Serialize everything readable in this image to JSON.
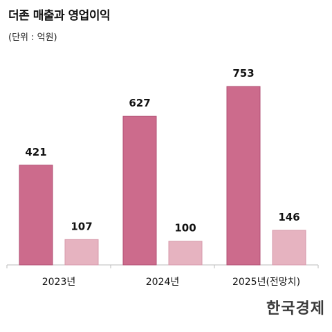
{
  "header": {
    "title": "더존 매출과 영업이익",
    "unit": "(단위 : 억원)"
  },
  "logo_text": "한국경제",
  "colors": {
    "revenue": "#cc6b8c",
    "revenue_stroke": "#b24f73",
    "profit": "#e6b3c0",
    "profit_stroke": "#d79aab",
    "axis": "#bbbbbb",
    "label": "#111111"
  },
  "chart_data": {
    "type": "bar",
    "title": "더존 매출과 영업이익",
    "ylabel": "(단위 : 억원)",
    "categories": [
      "2023년",
      "2024년",
      "2025년(전망치)"
    ],
    "series": [
      {
        "values": [
          421,
          627,
          753
        ]
      },
      {
        "values": [
          107,
          100,
          146
        ]
      }
    ],
    "ylim": [
      0,
      800
    ],
    "grid": false,
    "legend": "none"
  }
}
